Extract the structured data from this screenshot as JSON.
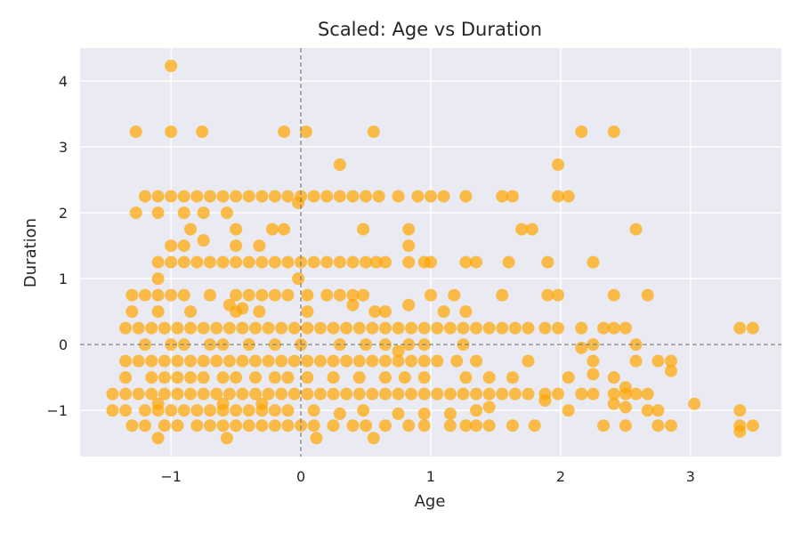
{
  "chart_data": {
    "type": "scatter",
    "title": "Scaled: Age vs Duration",
    "xlabel": "Age",
    "ylabel": "Duration",
    "xlim": [
      -1.7,
      3.7
    ],
    "ylim": [
      -1.7,
      4.5
    ],
    "xticks": [
      -1,
      0,
      1,
      2,
      3
    ],
    "yticks": [
      -1,
      0,
      1,
      2,
      3,
      4
    ],
    "xtick_labels": [
      "−1",
      "0",
      "1",
      "2",
      "3"
    ],
    "ytick_labels": [
      "−1",
      "0",
      "1",
      "2",
      "3",
      "4"
    ],
    "grid": true,
    "reference_lines": {
      "x": 0,
      "y": 0
    },
    "colors": {
      "background": "#eaeaf2",
      "point": "#ffa500",
      "grid": "#ffffff",
      "reference": "#7f7f7f"
    },
    "points": [
      [
        -1.0,
        4.23
      ],
      [
        -1.27,
        3.23
      ],
      [
        -1.0,
        3.23
      ],
      [
        -0.76,
        3.23
      ],
      [
        -0.13,
        3.23
      ],
      [
        0.04,
        3.23
      ],
      [
        0.56,
        3.23
      ],
      [
        2.16,
        3.23
      ],
      [
        2.41,
        3.23
      ],
      [
        0.3,
        2.73
      ],
      [
        1.98,
        2.73
      ],
      [
        -1.2,
        2.25
      ],
      [
        -1.1,
        2.25
      ],
      [
        -1.0,
        2.25
      ],
      [
        -0.9,
        2.25
      ],
      [
        -0.8,
        2.25
      ],
      [
        -0.7,
        2.25
      ],
      [
        -0.6,
        2.25
      ],
      [
        -0.5,
        2.25
      ],
      [
        -0.4,
        2.25
      ],
      [
        -0.3,
        2.25
      ],
      [
        -0.2,
        2.25
      ],
      [
        -0.1,
        2.25
      ],
      [
        0.0,
        2.25
      ],
      [
        0.1,
        2.25
      ],
      [
        0.2,
        2.25
      ],
      [
        0.3,
        2.25
      ],
      [
        0.4,
        2.25
      ],
      [
        0.5,
        2.25
      ],
      [
        0.6,
        2.25
      ],
      [
        0.75,
        2.25
      ],
      [
        0.9,
        2.25
      ],
      [
        1.0,
        2.25
      ],
      [
        1.1,
        2.25
      ],
      [
        1.27,
        2.25
      ],
      [
        1.55,
        2.25
      ],
      [
        1.63,
        2.25
      ],
      [
        1.98,
        2.25
      ],
      [
        2.06,
        2.25
      ],
      [
        -1.27,
        2.0
      ],
      [
        -1.1,
        2.0
      ],
      [
        -0.9,
        2.0
      ],
      [
        -0.75,
        2.0
      ],
      [
        -0.57,
        2.0
      ],
      [
        -0.02,
        2.15
      ],
      [
        -0.85,
        1.75
      ],
      [
        -0.5,
        1.75
      ],
      [
        -0.22,
        1.75
      ],
      [
        -0.13,
        1.75
      ],
      [
        0.48,
        1.75
      ],
      [
        0.83,
        1.75
      ],
      [
        1.7,
        1.75
      ],
      [
        1.78,
        1.75
      ],
      [
        2.58,
        1.75
      ],
      [
        -0.75,
        1.58
      ],
      [
        -1.0,
        1.5
      ],
      [
        -0.9,
        1.5
      ],
      [
        -0.5,
        1.5
      ],
      [
        -0.32,
        1.5
      ],
      [
        0.83,
        1.5
      ],
      [
        -1.1,
        1.25
      ],
      [
        -1.0,
        1.25
      ],
      [
        -0.9,
        1.25
      ],
      [
        -0.8,
        1.25
      ],
      [
        -0.7,
        1.25
      ],
      [
        -0.6,
        1.25
      ],
      [
        -0.5,
        1.25
      ],
      [
        -0.4,
        1.25
      ],
      [
        -0.3,
        1.25
      ],
      [
        -0.2,
        1.25
      ],
      [
        -0.1,
        1.25
      ],
      [
        0.0,
        1.25
      ],
      [
        0.1,
        1.25
      ],
      [
        0.2,
        1.25
      ],
      [
        0.3,
        1.25
      ],
      [
        0.4,
        1.25
      ],
      [
        0.5,
        1.25
      ],
      [
        0.58,
        1.25
      ],
      [
        0.65,
        1.25
      ],
      [
        0.83,
        1.25
      ],
      [
        0.95,
        1.25
      ],
      [
        1.0,
        1.25
      ],
      [
        1.27,
        1.25
      ],
      [
        1.35,
        1.25
      ],
      [
        1.6,
        1.25
      ],
      [
        1.9,
        1.25
      ],
      [
        2.25,
        1.25
      ],
      [
        -1.1,
        1.0
      ],
      [
        -0.02,
        1.0
      ],
      [
        -1.3,
        0.75
      ],
      [
        -1.2,
        0.75
      ],
      [
        -1.1,
        0.75
      ],
      [
        -1.0,
        0.75
      ],
      [
        -0.9,
        0.75
      ],
      [
        -0.7,
        0.75
      ],
      [
        -0.5,
        0.75
      ],
      [
        -0.4,
        0.75
      ],
      [
        -0.3,
        0.75
      ],
      [
        -0.2,
        0.75
      ],
      [
        -0.1,
        0.75
      ],
      [
        0.05,
        0.75
      ],
      [
        0.2,
        0.75
      ],
      [
        0.3,
        0.75
      ],
      [
        0.4,
        0.75
      ],
      [
        0.48,
        0.75
      ],
      [
        1.0,
        0.75
      ],
      [
        1.18,
        0.75
      ],
      [
        1.55,
        0.75
      ],
      [
        1.9,
        0.75
      ],
      [
        1.98,
        0.75
      ],
      [
        2.41,
        0.75
      ],
      [
        2.67,
        0.75
      ],
      [
        -1.3,
        0.5
      ],
      [
        -1.1,
        0.5
      ],
      [
        -0.85,
        0.5
      ],
      [
        -0.5,
        0.5
      ],
      [
        -0.32,
        0.5
      ],
      [
        0.05,
        0.5
      ],
      [
        0.4,
        0.6
      ],
      [
        0.57,
        0.5
      ],
      [
        0.65,
        0.5
      ],
      [
        0.83,
        0.6
      ],
      [
        1.1,
        0.5
      ],
      [
        1.27,
        0.5
      ],
      [
        -0.55,
        0.6
      ],
      [
        -0.45,
        0.55
      ],
      [
        -1.35,
        0.25
      ],
      [
        -1.25,
        0.25
      ],
      [
        -1.15,
        0.25
      ],
      [
        -1.05,
        0.25
      ],
      [
        -0.95,
        0.25
      ],
      [
        -0.85,
        0.25
      ],
      [
        -0.75,
        0.25
      ],
      [
        -0.65,
        0.25
      ],
      [
        -0.55,
        0.25
      ],
      [
        -0.45,
        0.25
      ],
      [
        -0.35,
        0.25
      ],
      [
        -0.25,
        0.25
      ],
      [
        -0.15,
        0.25
      ],
      [
        -0.05,
        0.25
      ],
      [
        0.05,
        0.25
      ],
      [
        0.15,
        0.25
      ],
      [
        0.25,
        0.25
      ],
      [
        0.35,
        0.25
      ],
      [
        0.45,
        0.25
      ],
      [
        0.55,
        0.25
      ],
      [
        0.65,
        0.25
      ],
      [
        0.75,
        0.25
      ],
      [
        0.85,
        0.25
      ],
      [
        0.95,
        0.25
      ],
      [
        1.05,
        0.25
      ],
      [
        1.15,
        0.25
      ],
      [
        1.25,
        0.25
      ],
      [
        1.35,
        0.25
      ],
      [
        1.45,
        0.25
      ],
      [
        1.55,
        0.25
      ],
      [
        1.65,
        0.25
      ],
      [
        1.75,
        0.25
      ],
      [
        1.88,
        0.25
      ],
      [
        1.98,
        0.25
      ],
      [
        2.16,
        0.25
      ],
      [
        2.33,
        0.25
      ],
      [
        2.41,
        0.25
      ],
      [
        2.5,
        0.25
      ],
      [
        3.38,
        0.25
      ],
      [
        3.48,
        0.25
      ],
      [
        -1.2,
        0.0
      ],
      [
        -1.0,
        0.0
      ],
      [
        -0.9,
        0.0
      ],
      [
        -0.7,
        0.0
      ],
      [
        -0.6,
        0.0
      ],
      [
        -0.4,
        0.0
      ],
      [
        -0.2,
        0.0
      ],
      [
        0.0,
        0.0
      ],
      [
        0.3,
        0.0
      ],
      [
        0.5,
        0.0
      ],
      [
        0.65,
        0.0
      ],
      [
        0.83,
        0.0
      ],
      [
        0.95,
        0.0
      ],
      [
        1.25,
        0.0
      ],
      [
        2.16,
        -0.05
      ],
      [
        2.25,
        0.0
      ],
      [
        2.58,
        0.0
      ],
      [
        -1.35,
        -0.25
      ],
      [
        -1.25,
        -0.25
      ],
      [
        -1.15,
        -0.25
      ],
      [
        -1.05,
        -0.25
      ],
      [
        -0.95,
        -0.25
      ],
      [
        -0.85,
        -0.25
      ],
      [
        -0.75,
        -0.25
      ],
      [
        -0.65,
        -0.25
      ],
      [
        -0.55,
        -0.25
      ],
      [
        -0.45,
        -0.25
      ],
      [
        -0.35,
        -0.25
      ],
      [
        -0.25,
        -0.25
      ],
      [
        -0.15,
        -0.25
      ],
      [
        -0.05,
        -0.25
      ],
      [
        0.05,
        -0.25
      ],
      [
        0.15,
        -0.25
      ],
      [
        0.25,
        -0.25
      ],
      [
        0.35,
        -0.25
      ],
      [
        0.45,
        -0.25
      ],
      [
        0.55,
        -0.25
      ],
      [
        0.65,
        -0.25
      ],
      [
        0.75,
        -0.25
      ],
      [
        0.85,
        -0.25
      ],
      [
        0.95,
        -0.25
      ],
      [
        1.05,
        -0.25
      ],
      [
        1.2,
        -0.25
      ],
      [
        1.35,
        -0.25
      ],
      [
        1.75,
        -0.25
      ],
      [
        2.25,
        -0.25
      ],
      [
        2.58,
        -0.25
      ],
      [
        2.75,
        -0.25
      ],
      [
        2.85,
        -0.25
      ],
      [
        0.75,
        -0.1
      ],
      [
        2.85,
        -0.4
      ],
      [
        2.25,
        -0.45
      ],
      [
        -1.35,
        -0.5
      ],
      [
        -1.15,
        -0.5
      ],
      [
        -1.05,
        -0.5
      ],
      [
        -0.95,
        -0.5
      ],
      [
        -0.85,
        -0.5
      ],
      [
        -0.75,
        -0.5
      ],
      [
        -0.6,
        -0.5
      ],
      [
        -0.5,
        -0.5
      ],
      [
        -0.35,
        -0.5
      ],
      [
        -0.2,
        -0.5
      ],
      [
        -0.1,
        -0.5
      ],
      [
        0.05,
        -0.5
      ],
      [
        0.25,
        -0.5
      ],
      [
        0.45,
        -0.5
      ],
      [
        0.65,
        -0.5
      ],
      [
        0.8,
        -0.5
      ],
      [
        0.95,
        -0.5
      ],
      [
        1.27,
        -0.5
      ],
      [
        1.45,
        -0.5
      ],
      [
        1.63,
        -0.5
      ],
      [
        2.06,
        -0.5
      ],
      [
        2.41,
        -0.5
      ],
      [
        2.5,
        -0.65
      ],
      [
        -1.45,
        -0.75
      ],
      [
        -1.35,
        -0.75
      ],
      [
        -1.25,
        -0.75
      ],
      [
        -1.15,
        -0.75
      ],
      [
        -1.05,
        -0.75
      ],
      [
        -0.95,
        -0.75
      ],
      [
        -0.85,
        -0.75
      ],
      [
        -0.75,
        -0.75
      ],
      [
        -0.65,
        -0.75
      ],
      [
        -0.55,
        -0.75
      ],
      [
        -0.45,
        -0.75
      ],
      [
        -0.35,
        -0.75
      ],
      [
        -0.25,
        -0.75
      ],
      [
        -0.15,
        -0.75
      ],
      [
        -0.05,
        -0.75
      ],
      [
        0.05,
        -0.75
      ],
      [
        0.15,
        -0.75
      ],
      [
        0.25,
        -0.75
      ],
      [
        0.35,
        -0.75
      ],
      [
        0.45,
        -0.75
      ],
      [
        0.55,
        -0.75
      ],
      [
        0.65,
        -0.75
      ],
      [
        0.75,
        -0.75
      ],
      [
        0.85,
        -0.75
      ],
      [
        0.95,
        -0.75
      ],
      [
        1.05,
        -0.75
      ],
      [
        1.15,
        -0.75
      ],
      [
        1.25,
        -0.75
      ],
      [
        1.35,
        -0.75
      ],
      [
        1.45,
        -0.75
      ],
      [
        1.55,
        -0.75
      ],
      [
        1.65,
        -0.75
      ],
      [
        1.75,
        -0.75
      ],
      [
        1.88,
        -0.75
      ],
      [
        1.98,
        -0.75
      ],
      [
        2.16,
        -0.75
      ],
      [
        2.25,
        -0.75
      ],
      [
        2.41,
        -0.75
      ],
      [
        2.5,
        -0.75
      ],
      [
        2.58,
        -0.75
      ],
      [
        2.67,
        -0.75
      ],
      [
        1.88,
        -0.85
      ],
      [
        -1.45,
        -1.0
      ],
      [
        -1.35,
        -1.0
      ],
      [
        -1.2,
        -1.0
      ],
      [
        -1.1,
        -1.0
      ],
      [
        -1.0,
        -1.0
      ],
      [
        -0.9,
        -1.0
      ],
      [
        -0.8,
        -1.0
      ],
      [
        -0.7,
        -1.0
      ],
      [
        -0.6,
        -1.0
      ],
      [
        -0.5,
        -1.0
      ],
      [
        -0.4,
        -1.0
      ],
      [
        -0.3,
        -1.0
      ],
      [
        -0.2,
        -1.0
      ],
      [
        -0.1,
        -1.0
      ],
      [
        0.1,
        -1.0
      ],
      [
        0.3,
        -1.05
      ],
      [
        0.48,
        -1.0
      ],
      [
        0.75,
        -1.05
      ],
      [
        0.95,
        -1.05
      ],
      [
        1.15,
        -1.05
      ],
      [
        1.35,
        -1.0
      ],
      [
        1.45,
        -0.95
      ],
      [
        2.06,
        -1.0
      ],
      [
        2.41,
        -0.9
      ],
      [
        2.5,
        -0.95
      ],
      [
        2.67,
        -1.0
      ],
      [
        2.75,
        -1.0
      ],
      [
        3.03,
        -0.9
      ],
      [
        3.38,
        -1.0
      ],
      [
        -1.1,
        -0.9
      ],
      [
        -0.6,
        -0.9
      ],
      [
        -0.3,
        -0.9
      ],
      [
        -1.3,
        -1.23
      ],
      [
        -1.2,
        -1.23
      ],
      [
        -1.05,
        -1.23
      ],
      [
        -0.95,
        -1.23
      ],
      [
        -0.8,
        -1.23
      ],
      [
        -0.7,
        -1.23
      ],
      [
        -0.6,
        -1.23
      ],
      [
        -0.5,
        -1.23
      ],
      [
        -0.4,
        -1.23
      ],
      [
        -0.3,
        -1.23
      ],
      [
        -0.2,
        -1.23
      ],
      [
        -0.1,
        -1.23
      ],
      [
        0.0,
        -1.23
      ],
      [
        0.1,
        -1.23
      ],
      [
        0.25,
        -1.23
      ],
      [
        0.4,
        -1.23
      ],
      [
        0.5,
        -1.23
      ],
      [
        0.65,
        -1.23
      ],
      [
        0.83,
        -1.23
      ],
      [
        0.95,
        -1.23
      ],
      [
        1.15,
        -1.23
      ],
      [
        1.27,
        -1.23
      ],
      [
        1.35,
        -1.23
      ],
      [
        1.45,
        -1.23
      ],
      [
        1.63,
        -1.23
      ],
      [
        1.8,
        -1.23
      ],
      [
        2.33,
        -1.23
      ],
      [
        2.5,
        -1.23
      ],
      [
        2.75,
        -1.23
      ],
      [
        2.85,
        -1.23
      ],
      [
        3.38,
        -1.23
      ],
      [
        3.48,
        -1.23
      ],
      [
        3.38,
        -1.32
      ],
      [
        -1.1,
        -1.42
      ],
      [
        -0.57,
        -1.42
      ],
      [
        0.12,
        -1.42
      ],
      [
        0.56,
        -1.42
      ]
    ]
  }
}
